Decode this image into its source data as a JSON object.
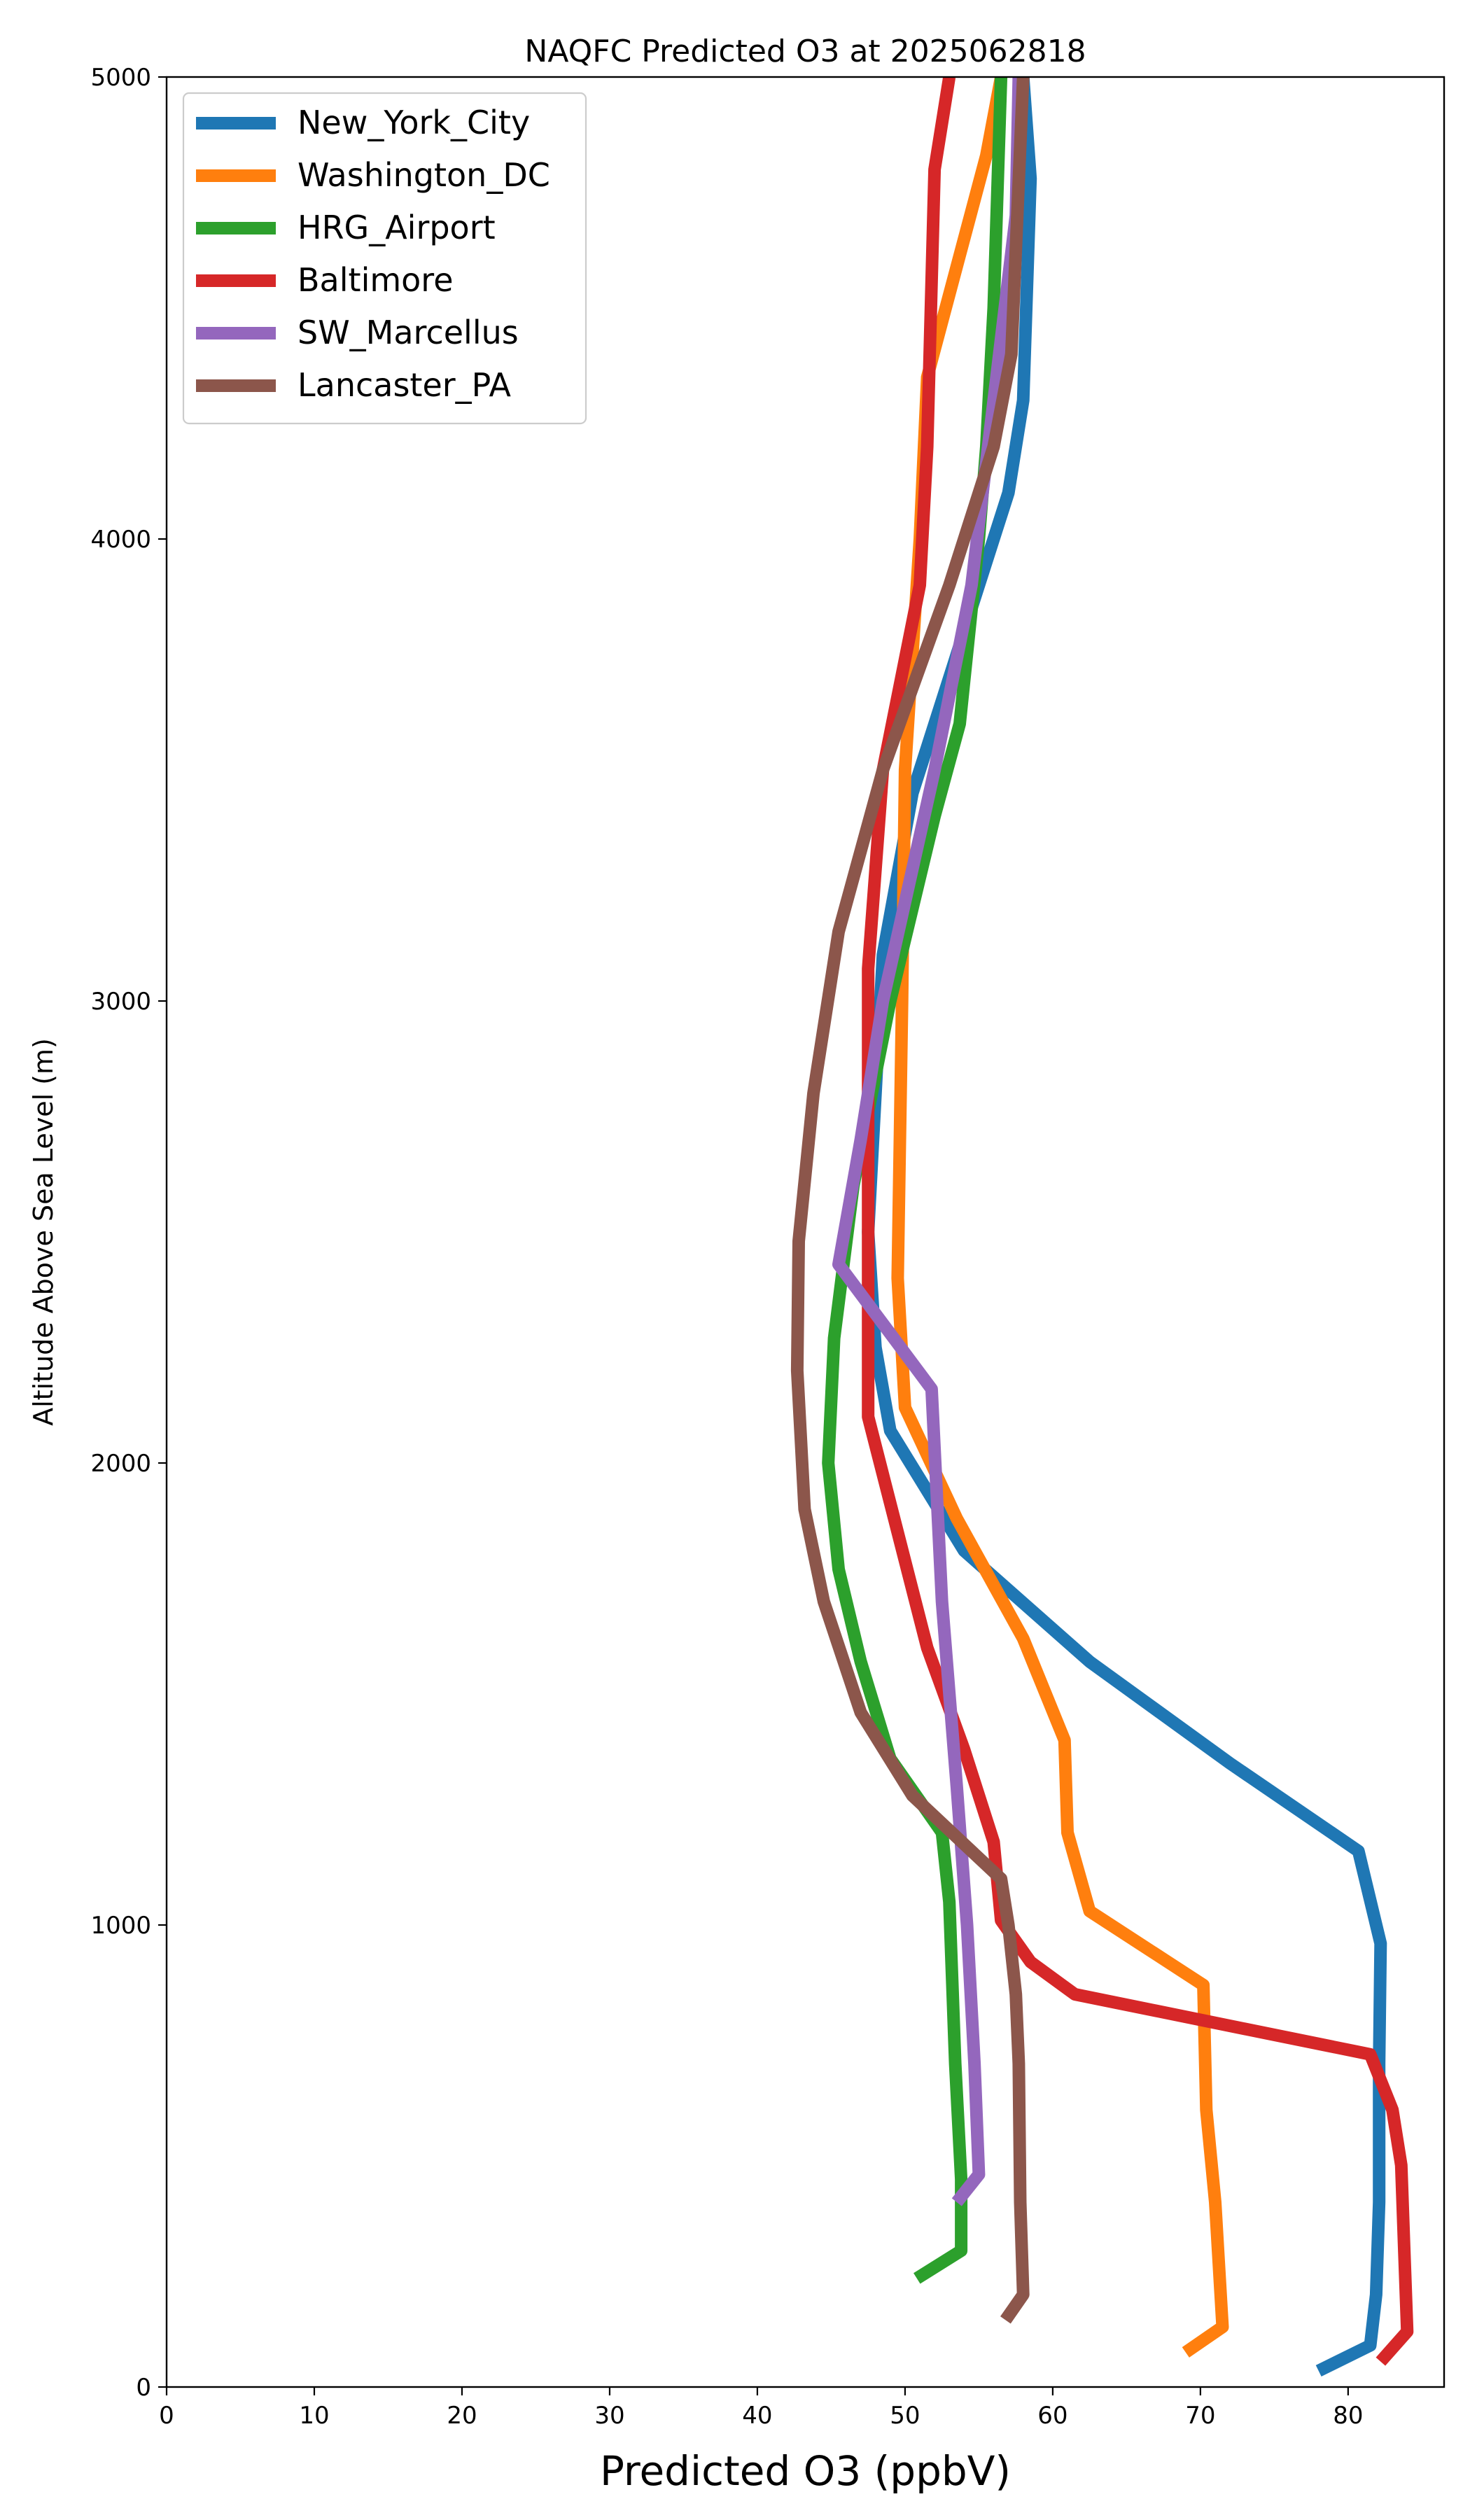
{
  "chart_data": {
    "type": "line",
    "title": "NAQFC Predicted O3 at 2025062818",
    "xlabel": "Predicted O3 (ppbV)",
    "ylabel": "Altitude Above Sea Level (m)",
    "xlim": [
      0,
      86.5
    ],
    "ylim": [
      0,
      5000
    ],
    "xticks": [
      0,
      10,
      20,
      30,
      40,
      50,
      60,
      70,
      80
    ],
    "yticks": [
      0,
      1000,
      2000,
      3000,
      4000,
      5000
    ],
    "grid": false,
    "legend_position": "upper-left",
    "series": [
      {
        "name": "New_York_City",
        "color": "#1f77b4",
        "points": [
          [
            78,
            35
          ],
          [
            81.5,
            90
          ],
          [
            81.9,
            200
          ],
          [
            82.1,
            400
          ],
          [
            82.1,
            700
          ],
          [
            82.2,
            960
          ],
          [
            80.7,
            1160
          ],
          [
            72,
            1350
          ],
          [
            62.5,
            1570
          ],
          [
            54,
            1810
          ],
          [
            49,
            2070
          ],
          [
            48,
            2250
          ],
          [
            47.5,
            2500
          ],
          [
            48.5,
            3100
          ],
          [
            50.5,
            3450
          ],
          [
            54,
            3800
          ],
          [
            57,
            4100
          ],
          [
            58,
            4300
          ],
          [
            58.5,
            4780
          ],
          [
            58,
            5000
          ]
        ]
      },
      {
        "name": "Washington_DC",
        "color": "#ff7f0e",
        "points": [
          [
            69,
            75
          ],
          [
            71.5,
            130
          ],
          [
            71,
            400
          ],
          [
            70.4,
            600
          ],
          [
            70.2,
            870
          ],
          [
            62.5,
            1030
          ],
          [
            61,
            1200
          ],
          [
            60.8,
            1400
          ],
          [
            58,
            1620
          ],
          [
            53.5,
            1880
          ],
          [
            50,
            2120
          ],
          [
            49.5,
            2400
          ],
          [
            49.8,
            3000
          ],
          [
            50,
            3500
          ],
          [
            51,
            4000
          ],
          [
            51.5,
            4350
          ],
          [
            55.5,
            4830
          ],
          [
            56.5,
            5000
          ]
        ]
      },
      {
        "name": "HRG_Airport",
        "color": "#2ca02c",
        "points": [
          [
            50.8,
            235
          ],
          [
            53.8,
            295
          ],
          [
            53.8,
            450
          ],
          [
            53.4,
            700
          ],
          [
            53,
            1050
          ],
          [
            52.5,
            1200
          ],
          [
            49,
            1360
          ],
          [
            47,
            1570
          ],
          [
            45.5,
            1770
          ],
          [
            44.8,
            2000
          ],
          [
            45.2,
            2270
          ],
          [
            46.5,
            2600
          ],
          [
            49,
            3000
          ],
          [
            52,
            3400
          ],
          [
            53.7,
            3600
          ],
          [
            55,
            4000
          ],
          [
            55.5,
            4200
          ],
          [
            56,
            4500
          ],
          [
            56.5,
            5000
          ]
        ]
      },
      {
        "name": "Baltimore",
        "color": "#d62728",
        "points": [
          [
            82.2,
            55
          ],
          [
            84,
            120
          ],
          [
            83.8,
            300
          ],
          [
            83.6,
            480
          ],
          [
            83,
            600
          ],
          [
            81.5,
            720
          ],
          [
            61.5,
            850
          ],
          [
            58.5,
            920
          ],
          [
            56.5,
            1010
          ],
          [
            56,
            1180
          ],
          [
            54,
            1380
          ],
          [
            51.5,
            1600
          ],
          [
            49.5,
            1850
          ],
          [
            47.5,
            2100
          ],
          [
            47.5,
            2500
          ],
          [
            47.5,
            3070
          ],
          [
            48.5,
            3500
          ],
          [
            51,
            3900
          ],
          [
            51.5,
            4200
          ],
          [
            52,
            4800
          ],
          [
            53,
            5000
          ]
        ]
      },
      {
        "name": "SW_Marcellus",
        "color": "#9467bd",
        "points": [
          [
            53.5,
            400
          ],
          [
            55,
            460
          ],
          [
            54.7,
            700
          ],
          [
            54.2,
            1000
          ],
          [
            53.5,
            1300
          ],
          [
            52.5,
            1700
          ],
          [
            51.8,
            2160
          ],
          [
            45.5,
            2430
          ],
          [
            47,
            2700
          ],
          [
            48.5,
            3000
          ],
          [
            52,
            3500
          ],
          [
            54.5,
            3900
          ],
          [
            56,
            4300
          ],
          [
            57.5,
            4700
          ],
          [
            57.7,
            5000
          ]
        ]
      },
      {
        "name": "Lancaster_PA",
        "color": "#8c564b",
        "points": [
          [
            56.8,
            145
          ],
          [
            58,
            200
          ],
          [
            57.8,
            400
          ],
          [
            57.7,
            700
          ],
          [
            57.5,
            850
          ],
          [
            57,
            1000
          ],
          [
            56.5,
            1100
          ],
          [
            50.5,
            1280
          ],
          [
            47,
            1460
          ],
          [
            44.5,
            1700
          ],
          [
            43.2,
            1900
          ],
          [
            42.7,
            2200
          ],
          [
            42.8,
            2480
          ],
          [
            43.8,
            2800
          ],
          [
            45.5,
            3150
          ],
          [
            48.5,
            3500
          ],
          [
            53,
            3900
          ],
          [
            56,
            4200
          ],
          [
            57.2,
            4400
          ],
          [
            58,
            5000
          ]
        ]
      }
    ]
  }
}
